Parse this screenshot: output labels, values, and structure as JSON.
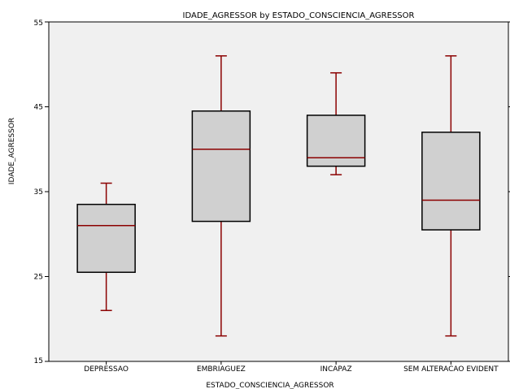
{
  "chart_data": {
    "type": "boxplot",
    "title": "IDADE_AGRESSOR by ESTADO_CONSCIENCIA_AGRESSOR",
    "xlabel": "ESTADO_CONSCIENCIA_AGRESSOR",
    "ylabel": "IDADE_AGRESSOR",
    "ylim": [
      15,
      55
    ],
    "yticks": [
      15,
      25,
      35,
      45,
      55
    ],
    "grid": false,
    "categories": [
      "DEPRESSAO",
      "EMBRIAGUEZ",
      "INCAPAZ",
      "SEM ALTERACAO EVIDENT"
    ],
    "boxes": [
      {
        "category": "DEPRESSAO",
        "min": 21,
        "q1": 25.5,
        "median": 31,
        "q3": 33.5,
        "max": 36
      },
      {
        "category": "EMBRIAGUEZ",
        "min": 18,
        "q1": 31.5,
        "median": 40,
        "q3": 44.5,
        "max": 51
      },
      {
        "category": "INCAPAZ",
        "min": 37,
        "q1": 38,
        "median": 39,
        "q3": 44,
        "max": 49
      },
      {
        "category": "SEM ALTERACAO EVIDENT",
        "min": 18,
        "q1": 30.5,
        "median": 34,
        "q3": 42,
        "max": 51
      }
    ],
    "colors": {
      "plot_background": "#f0f0f0",
      "box_fill": "#d0d0d0",
      "box_edge": "#000000",
      "whisker": "#8b0000",
      "median": "#8b0000"
    }
  }
}
